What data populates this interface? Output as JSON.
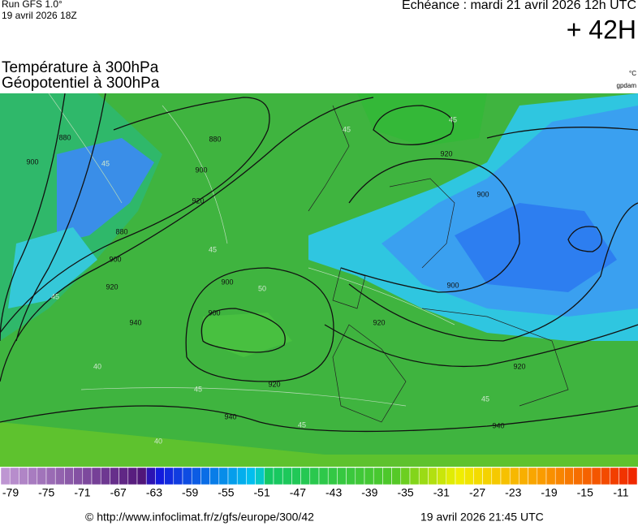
{
  "header": {
    "run": "Run GFS 1.0°",
    "run_date": "19 avril 2026 18Z",
    "valid": "Echéance : mardi 21 avril 2026 12h UTC",
    "lead": "+ 42H",
    "title_temp": "Température à 300hPa",
    "title_geo": "Géopotentiel à 300hPa",
    "unit_temp": "°C",
    "unit_geo": "gpdam"
  },
  "map": {
    "height_labels": [
      "880",
      "900",
      "880",
      "900",
      "920",
      "880",
      "900",
      "920",
      "900",
      "900",
      "920",
      "920",
      "940",
      "920",
      "940",
      "940",
      "900",
      "900",
      "920"
    ],
    "temperature_labels": [
      "45",
      "45",
      "45",
      "45",
      "50",
      "45",
      "40",
      "40",
      "45",
      "45",
      "45"
    ]
  },
  "colorbar": {
    "ticks": [
      -79,
      -75,
      -71,
      -67,
      -63,
      -59,
      -55,
      -51,
      -47,
      -43,
      -39,
      -35,
      -31,
      -27,
      -23,
      -19,
      -15,
      -11
    ]
  },
  "footer": {
    "source": "© http://www.infoclimat.fr/z/gfs/europe/300/42",
    "issued": "19 avril 2026 21:45 UTC"
  }
}
